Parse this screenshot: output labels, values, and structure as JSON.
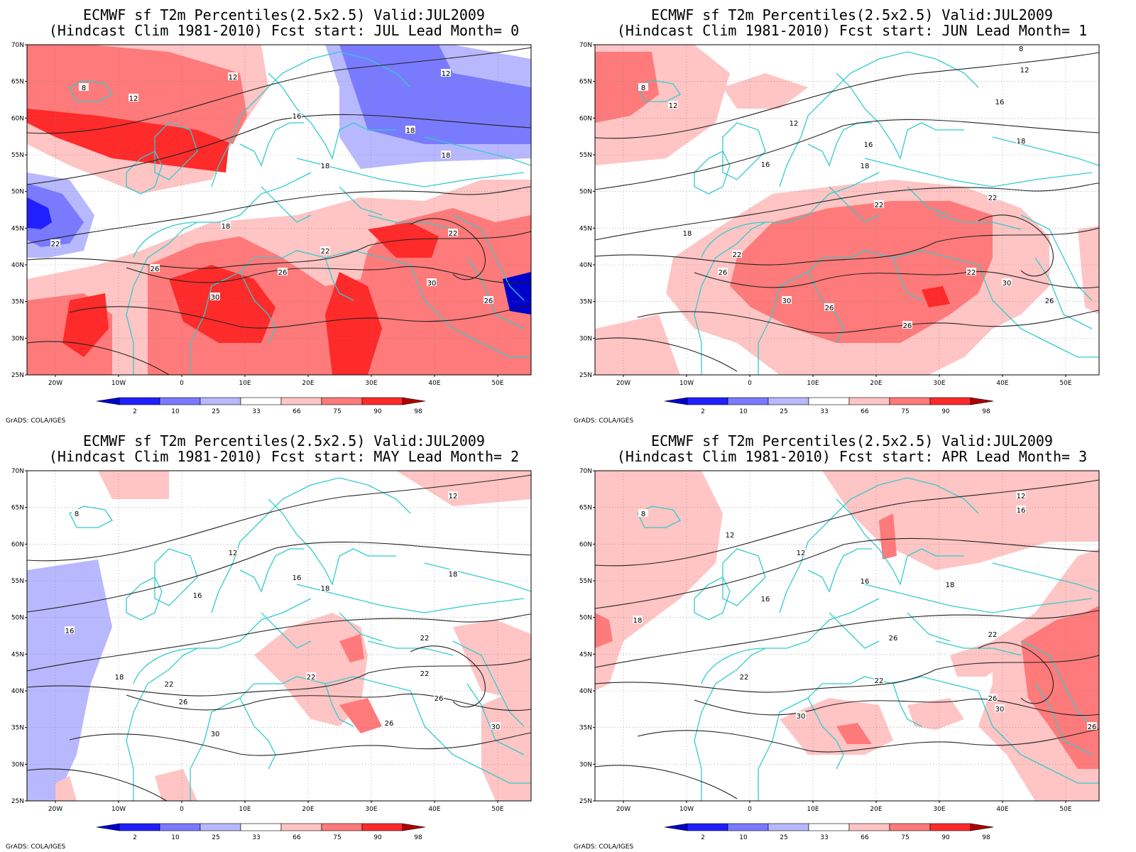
{
  "credit": "GrADS: COLA/IGES",
  "colorbar": {
    "labels": [
      "2",
      "10",
      "25",
      "33",
      "66",
      "75",
      "90",
      "98"
    ],
    "colors": [
      "#0000cc",
      "#2020ff",
      "#7a7aff",
      "#b8b8ff",
      "#ffffff",
      "#ffc4c4",
      "#ff7a7a",
      "#ff2a2a",
      "#b00000"
    ]
  },
  "axes": {
    "lat_labels": [
      "70N",
      "65N",
      "60N",
      "55N",
      "50N",
      "45N",
      "40N",
      "35N",
      "30N",
      "25N"
    ],
    "lon_labels": [
      "20W",
      "10W",
      "0",
      "10E",
      "20E",
      "30E",
      "40E",
      "50E"
    ]
  },
  "panels": [
    {
      "title_line1": "ECMWF sf T2m Percentiles(2.5x2.5) Valid:JUL2009",
      "title_line2": "(Hindcast Clim 1981-2010) Fcst start: JUL  Lead Month= 0",
      "contour_labels": [
        "8",
        "12",
        "12",
        "12",
        "16",
        "18",
        "18",
        "18",
        "18",
        "22",
        "22",
        "22",
        "26",
        "26",
        "26",
        "30",
        "30"
      ]
    },
    {
      "title_line1": "ECMWF sf T2m Percentiles(2.5x2.5) Valid:JUL2009",
      "title_line2": "(Hindcast Clim 1981-2010) Fcst start: JUN  Lead Month= 1",
      "contour_labels": [
        "8",
        "8",
        "12",
        "12",
        "12",
        "16",
        "16",
        "16",
        "18",
        "18",
        "18",
        "22",
        "22",
        "22",
        "22",
        "26",
        "26",
        "26",
        "26",
        "30",
        "30"
      ]
    },
    {
      "title_line1": "ECMWF sf T2m Percentiles(2.5x2.5) Valid:JUL2009",
      "title_line2": "(Hindcast Clim 1981-2010) Fcst start: MAY  Lead Month= 2",
      "contour_labels": [
        "8",
        "12",
        "12",
        "16",
        "16",
        "16",
        "18",
        "18",
        "18",
        "22",
        "22",
        "22",
        "22",
        "26",
        "26",
        "26",
        "30",
        "30"
      ]
    },
    {
      "title_line1": "ECMWF sf T2m Percentiles(2.5x2.5) Valid:JUL2009",
      "title_line2": "(Hindcast Clim 1981-2010) Fcst start: APR  Lead Month= 3",
      "contour_labels": [
        "8",
        "12",
        "12",
        "12",
        "16",
        "16",
        "16",
        "18",
        "18",
        "22",
        "22",
        "22",
        "26",
        "26",
        "26",
        "30",
        "30"
      ]
    }
  ]
}
